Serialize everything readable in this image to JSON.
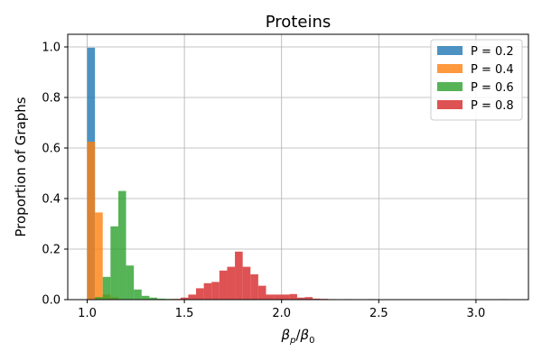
{
  "chart_data": {
    "type": "bar",
    "title": "Proteins",
    "xlabel_base": "β",
    "xlabel_sub_num": "p",
    "xlabel_sub_den": "0",
    "ylabel": "Proportion of Graphs",
    "xlim": [
      0.9,
      3.27
    ],
    "ylim": [
      0,
      1.05
    ],
    "xticks": [
      1.0,
      1.5,
      2.0,
      2.5,
      3.0
    ],
    "xtick_labels": [
      "1.0",
      "1.5",
      "2.0",
      "2.5",
      "3.0"
    ],
    "yticks": [
      0.0,
      0.2,
      0.4,
      0.6,
      0.8,
      1.0
    ],
    "ytick_labels": [
      "0.0",
      "0.2",
      "0.4",
      "0.6",
      "0.8",
      "1.0"
    ],
    "grid": true,
    "legend_position": "top-right",
    "series": [
      {
        "name": "P = 0.2",
        "color": "#1f77b4",
        "bins": [
          [
            1.0,
            1.04,
            0.997
          ]
        ]
      },
      {
        "name": "P = 0.4",
        "color": "#ff7f0e",
        "bins": [
          [
            1.0,
            1.04,
            0.625
          ],
          [
            1.04,
            1.08,
            0.345
          ],
          [
            1.08,
            1.12,
            0.02
          ],
          [
            1.12,
            1.16,
            0.01
          ]
        ]
      },
      {
        "name": "P = 0.6",
        "color": "#2ca02c",
        "bins": [
          [
            1.04,
            1.08,
            0.01
          ],
          [
            1.08,
            1.12,
            0.09
          ],
          [
            1.12,
            1.16,
            0.29
          ],
          [
            1.16,
            1.2,
            0.43
          ],
          [
            1.2,
            1.24,
            0.135
          ],
          [
            1.24,
            1.28,
            0.04
          ],
          [
            1.28,
            1.32,
            0.015
          ],
          [
            1.32,
            1.36,
            0.008
          ],
          [
            1.36,
            1.4,
            0.004
          ],
          [
            1.4,
            1.44,
            0.003
          ],
          [
            1.44,
            1.48,
            0.002
          ],
          [
            1.48,
            1.52,
            0.001
          ]
        ]
      },
      {
        "name": "P = 0.8",
        "color": "#d62728",
        "bins": [
          [
            1.44,
            1.48,
            0.003
          ],
          [
            1.48,
            1.52,
            0.008
          ],
          [
            1.52,
            1.56,
            0.02
          ],
          [
            1.56,
            1.6,
            0.045
          ],
          [
            1.6,
            1.64,
            0.065
          ],
          [
            1.64,
            1.68,
            0.07
          ],
          [
            1.68,
            1.72,
            0.115
          ],
          [
            1.72,
            1.76,
            0.13
          ],
          [
            1.76,
            1.8,
            0.19
          ],
          [
            1.8,
            1.84,
            0.13
          ],
          [
            1.84,
            1.88,
            0.1
          ],
          [
            1.88,
            1.92,
            0.055
          ],
          [
            1.92,
            1.96,
            0.02
          ],
          [
            1.96,
            2.0,
            0.02
          ],
          [
            2.0,
            2.04,
            0.02
          ],
          [
            2.04,
            2.08,
            0.022
          ],
          [
            2.08,
            2.12,
            0.008
          ],
          [
            2.12,
            2.16,
            0.01
          ],
          [
            2.16,
            2.2,
            0.004
          ],
          [
            2.2,
            2.24,
            0.003
          ],
          [
            2.24,
            2.28,
            0.002
          ],
          [
            2.32,
            2.36,
            0.002
          ],
          [
            2.44,
            2.48,
            0.002
          ],
          [
            3.12,
            3.16,
            0.002
          ]
        ]
      }
    ]
  }
}
